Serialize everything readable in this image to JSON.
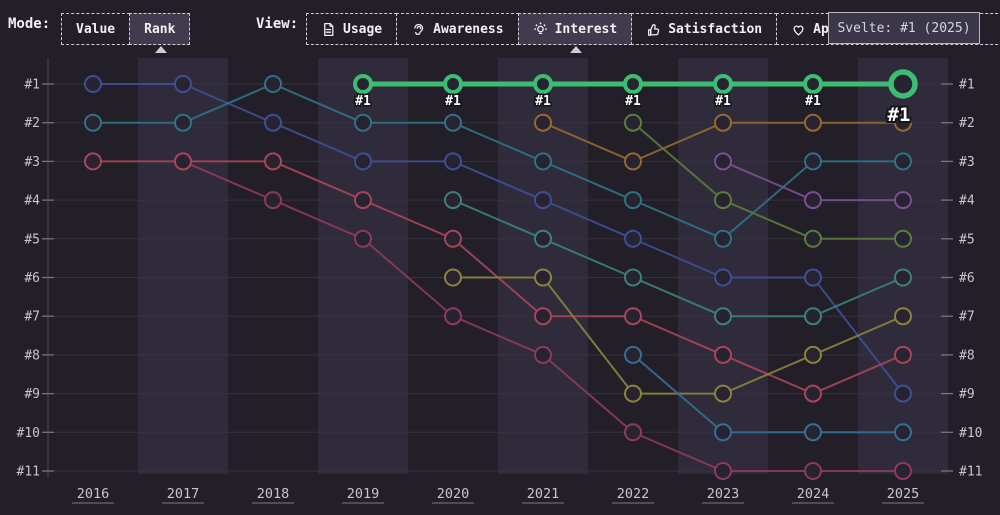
{
  "toolbar": {
    "mode_label": "Mode:",
    "modes": [
      {
        "label": "Value",
        "active": false
      },
      {
        "label": "Rank",
        "active": true
      }
    ],
    "view_label": "View:",
    "views": [
      {
        "label": "Usage",
        "icon": "document-icon",
        "active": false
      },
      {
        "label": "Awareness",
        "icon": "ear-icon",
        "active": false
      },
      {
        "label": "Interest",
        "icon": "lightbulb-icon",
        "active": true
      },
      {
        "label": "Satisfaction",
        "icon": "thumbs-up-icon",
        "active": false
      },
      {
        "label": "Appreciation",
        "icon": "heart-icon",
        "active": false
      }
    ]
  },
  "tooltip": {
    "text": "Svelte: #1 (2025)"
  },
  "chart_data": {
    "type": "line",
    "mode": "rank",
    "view": "Interest",
    "x": [
      2016,
      2017,
      2018,
      2019,
      2020,
      2021,
      2022,
      2023,
      2024,
      2025
    ],
    "rank_labels": [
      "#1",
      "#2",
      "#3",
      "#4",
      "#5",
      "#6",
      "#7",
      "#8",
      "#9",
      "#10",
      "#11"
    ],
    "ylim": [
      1,
      11
    ],
    "grid": true,
    "alternating_year_bands": true,
    "highlighted_series": "Svelte",
    "highlight_point_label": "#1",
    "colors": {
      "background": "#231f28",
      "band": "#2f2b3b",
      "grid": "#36323e",
      "axis_text": "#c9c5ce",
      "highlight": "#3cbd74"
    },
    "series": [
      {
        "name": "series-indigo",
        "color": "#3d4f96",
        "highlight": false,
        "ranks": [
          1,
          1,
          2,
          3,
          3,
          4,
          5,
          6,
          6,
          9
        ]
      },
      {
        "name": "series-teal",
        "color": "#2f7287",
        "highlight": false,
        "ranks": [
          2,
          2,
          1,
          2,
          2,
          3,
          4,
          5,
          3,
          3
        ]
      },
      {
        "name": "series-maroon",
        "color": "#8f395c",
        "highlight": false,
        "ranks": [
          null,
          3,
          4,
          5,
          7,
          8,
          10,
          11,
          11,
          11
        ]
      },
      {
        "name": "series-red",
        "color": "#a8455a",
        "highlight": false,
        "ranks": [
          3,
          3,
          3,
          4,
          5,
          7,
          7,
          8,
          9,
          8
        ]
      },
      {
        "name": "series-olive",
        "color": "#8c823e",
        "highlight": false,
        "ranks": [
          null,
          null,
          null,
          null,
          6,
          6,
          9,
          9,
          8,
          7
        ]
      },
      {
        "name": "series-seagreen",
        "color": "#3a8278",
        "highlight": false,
        "ranks": [
          null,
          null,
          null,
          null,
          4,
          5,
          6,
          7,
          7,
          6
        ]
      },
      {
        "name": "series-brown",
        "color": "#96692f",
        "highlight": false,
        "ranks": [
          null,
          null,
          null,
          null,
          null,
          2,
          3,
          2,
          2,
          2
        ]
      },
      {
        "name": "series-green",
        "color": "#5a7c3c",
        "highlight": false,
        "ranks": [
          null,
          null,
          null,
          null,
          null,
          null,
          2,
          4,
          5,
          5
        ]
      },
      {
        "name": "series-steelblue",
        "color": "#346f96",
        "highlight": false,
        "ranks": [
          null,
          null,
          null,
          null,
          null,
          null,
          8,
          10,
          10,
          10
        ]
      },
      {
        "name": "series-purple",
        "color": "#7c4f94",
        "highlight": false,
        "ranks": [
          null,
          null,
          null,
          null,
          null,
          null,
          null,
          3,
          4,
          4
        ]
      },
      {
        "name": "Svelte",
        "color": "#3cbd74",
        "highlight": true,
        "ranks": [
          null,
          null,
          null,
          1,
          1,
          1,
          1,
          1,
          1,
          1
        ]
      }
    ]
  }
}
